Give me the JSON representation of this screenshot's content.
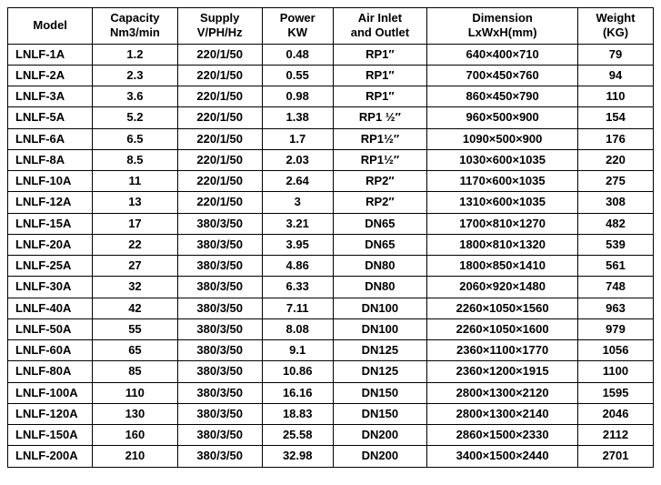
{
  "table": {
    "columns": [
      {
        "line1": "Model",
        "line2": ""
      },
      {
        "line1": "Capacity",
        "line2": "Nm3/min"
      },
      {
        "line1": "Supply",
        "line2": "V/PH/Hz"
      },
      {
        "line1": "Power",
        "line2": "KW"
      },
      {
        "line1": "Air Inlet",
        "line2": "and Outlet"
      },
      {
        "line1": "Dimension",
        "line2": "LxWxH(mm)"
      },
      {
        "line1": "Weight",
        "line2": "(KG)"
      }
    ],
    "col_classes": [
      "c0",
      "c1",
      "c2",
      "c3",
      "c4",
      "c5",
      "c6"
    ],
    "rows": [
      [
        "LNLF-1A",
        "1.2",
        "220/1/50",
        "0.48",
        "RP1″",
        "640×400×710",
        "79"
      ],
      [
        "LNLF-2A",
        "2.3",
        "220/1/50",
        "0.55",
        "RP1″",
        "700×450×760",
        "94"
      ],
      [
        "LNLF-3A",
        "3.6",
        "220/1/50",
        "0.98",
        "RP1″",
        "860×450×790",
        "110"
      ],
      [
        "LNLF-5A",
        "5.2",
        "220/1/50",
        "1.38",
        "RP1 ½″",
        "960×500×900",
        "154"
      ],
      [
        "LNLF-6A",
        "6.5",
        "220/1/50",
        "1.7",
        "RP1½″",
        "1090×500×900",
        "176"
      ],
      [
        "LNLF-8A",
        "8.5",
        "220/1/50",
        "2.03",
        "RP1½″",
        "1030×600×1035",
        "220"
      ],
      [
        "LNLF-10A",
        "11",
        "220/1/50",
        "2.64",
        "RP2″",
        "1170×600×1035",
        "275"
      ],
      [
        "LNLF-12A",
        "13",
        "220/1/50",
        "3",
        "RP2″",
        "1310×600×1035",
        "308"
      ],
      [
        "LNLF-15A",
        "17",
        "380/3/50",
        "3.21",
        "DN65",
        "1700×810×1270",
        "482"
      ],
      [
        "LNLF-20A",
        "22",
        "380/3/50",
        "3.95",
        "DN65",
        "1800×810×1320",
        "539"
      ],
      [
        "LNLF-25A",
        "27",
        "380/3/50",
        "4.86",
        "DN80",
        "1800×850×1410",
        "561"
      ],
      [
        "LNLF-30A",
        "32",
        "380/3/50",
        "6.33",
        "DN80",
        "2060×920×1480",
        "748"
      ],
      [
        "LNLF-40A",
        "42",
        "380/3/50",
        "7.11",
        "DN100",
        "2260×1050×1560",
        "963"
      ],
      [
        "LNLF-50A",
        "55",
        "380/3/50",
        "8.08",
        "DN100",
        "2260×1050×1600",
        "979"
      ],
      [
        "LNLF-60A",
        "65",
        "380/3/50",
        "9.1",
        "DN125",
        "2360×1100×1770",
        "1056"
      ],
      [
        "LNLF-80A",
        "85",
        "380/3/50",
        "10.86",
        "DN125",
        "2360×1200×1915",
        "1100"
      ],
      [
        "LNLF-100A",
        "110",
        "380/3/50",
        "16.16",
        "DN150",
        "2800×1300×2120",
        "1595"
      ],
      [
        "LNLF-120A",
        "130",
        "380/3/50",
        "18.83",
        "DN150",
        "2800×1300×2140",
        "2046"
      ],
      [
        "LNLF-150A",
        "160",
        "380/3/50",
        "25.58",
        "DN200",
        "2860×1500×2330",
        "2112"
      ],
      [
        "LNLF-200A",
        "210",
        "380/3/50",
        "32.98",
        "DN200",
        "3400×1500×2440",
        "2701"
      ]
    ]
  }
}
